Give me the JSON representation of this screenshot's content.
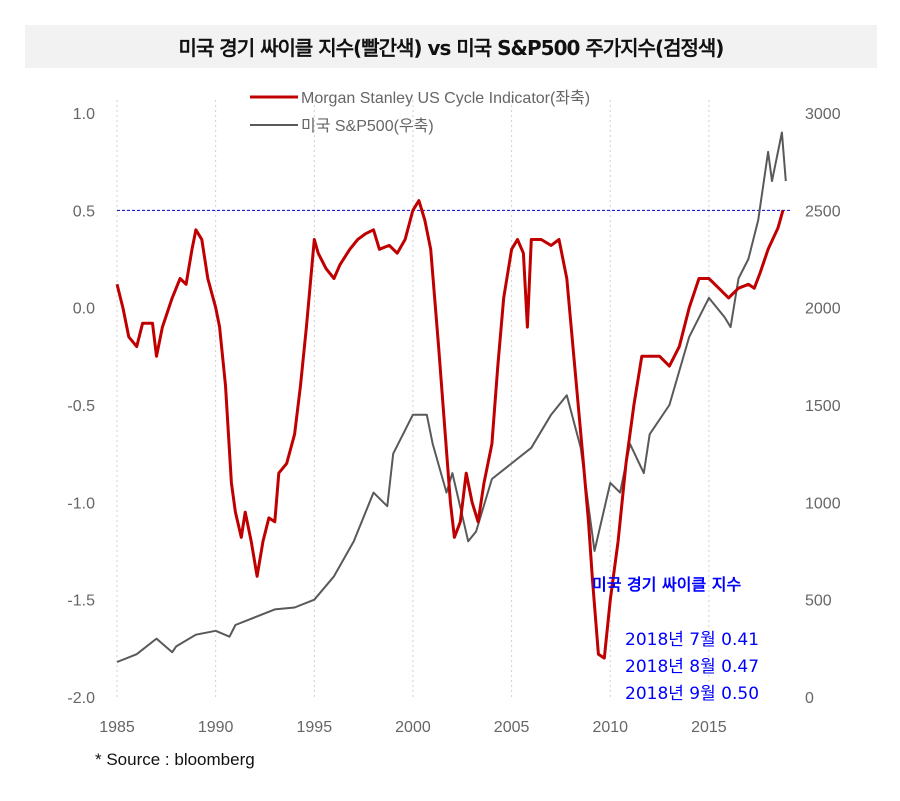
{
  "chart_data": {
    "type": "line",
    "title": "미국 경기 싸이클 지수(빨간색) vs 미국 S&P500 주가지수(검정색)",
    "x_range": [
      1985,
      2019
    ],
    "x_ticks": [
      "1985",
      "1990",
      "1995",
      "2000",
      "2005",
      "2010",
      "2015"
    ],
    "x_tick_values": [
      1985,
      1990,
      1995,
      2000,
      2005,
      2010,
      2015
    ],
    "y_left": {
      "range": [
        -2.0,
        1.0
      ],
      "ticks": [
        "1.0",
        "0.5",
        "0.0",
        "-0.5",
        "-1.0",
        "-1.5",
        "-2.0"
      ],
      "tick_values": [
        1.0,
        0.5,
        0.0,
        -0.5,
        -1.0,
        -1.5,
        -2.0
      ]
    },
    "y_right": {
      "range": [
        0,
        3000
      ],
      "ticks": [
        "3000",
        "2500",
        "2000",
        "1500",
        "1000",
        "500",
        "0"
      ],
      "tick_values": [
        3000,
        2500,
        2000,
        1500,
        1000,
        500,
        0
      ]
    },
    "grid": "vertical dotted",
    "reference_line": {
      "axis": "left",
      "value": 0.5,
      "color": "#0000cc"
    },
    "legend_position": "top-center",
    "series": [
      {
        "name": "Morgan Stanley US Cycle Indicator(좌축)",
        "axis": "left",
        "color": "#c00000",
        "x": [
          1985.0,
          1985.3,
          1985.6,
          1986.0,
          1986.3,
          1986.8,
          1987.0,
          1987.3,
          1987.8,
          1988.2,
          1988.5,
          1988.8,
          1989.0,
          1989.3,
          1989.6,
          1990.0,
          1990.2,
          1990.5,
          1990.8,
          1991.0,
          1991.3,
          1991.5,
          1991.8,
          1992.1,
          1992.4,
          1992.7,
          1993.0,
          1993.2,
          1993.6,
          1994.0,
          1994.3,
          1994.6,
          1995.0,
          1995.2,
          1995.6,
          1996.0,
          1996.3,
          1996.8,
          1997.2,
          1997.6,
          1998.0,
          1998.3,
          1998.8,
          1999.2,
          1999.6,
          2000.0,
          2000.3,
          2000.6,
          2000.9,
          2001.3,
          2001.6,
          2001.9,
          2002.1,
          2002.4,
          2002.7,
          2003.0,
          2003.3,
          2003.6,
          2004.0,
          2004.3,
          2004.6,
          2005.0,
          2005.3,
          2005.6,
          2005.8,
          2006.0,
          2006.5,
          2007.0,
          2007.4,
          2007.8,
          2008.2,
          2008.6,
          2008.9,
          2009.1,
          2009.4,
          2009.7,
          2010.0,
          2010.4,
          2010.8,
          2011.2,
          2011.6,
          2012.0,
          2012.5,
          2013.0,
          2013.5,
          2014.0,
          2014.5,
          2015.0,
          2015.5,
          2016.0,
          2016.5,
          2017.0,
          2017.3,
          2017.6,
          2018.0,
          2018.5,
          2018.67,
          2018.75
        ],
        "y": [
          0.12,
          0.0,
          -0.15,
          -0.2,
          -0.08,
          -0.08,
          -0.25,
          -0.1,
          0.05,
          0.15,
          0.12,
          0.3,
          0.4,
          0.35,
          0.15,
          0.0,
          -0.1,
          -0.4,
          -0.9,
          -1.05,
          -1.18,
          -1.05,
          -1.2,
          -1.38,
          -1.2,
          -1.08,
          -1.1,
          -0.85,
          -0.8,
          -0.65,
          -0.4,
          -0.1,
          0.35,
          0.28,
          0.2,
          0.15,
          0.22,
          0.3,
          0.35,
          0.38,
          0.4,
          0.3,
          0.32,
          0.28,
          0.35,
          0.5,
          0.55,
          0.45,
          0.3,
          -0.2,
          -0.6,
          -1.0,
          -1.18,
          -1.1,
          -0.85,
          -1.0,
          -1.1,
          -0.9,
          -0.7,
          -0.3,
          0.05,
          0.3,
          0.35,
          0.28,
          -0.1,
          0.35,
          0.35,
          0.32,
          0.35,
          0.15,
          -0.3,
          -0.75,
          -1.1,
          -1.4,
          -1.78,
          -1.8,
          -1.5,
          -1.2,
          -0.8,
          -0.5,
          -0.25,
          -0.25,
          -0.25,
          -0.3,
          -0.2,
          0.0,
          0.15,
          0.15,
          0.1,
          0.05,
          0.1,
          0.12,
          0.1,
          0.18,
          0.3,
          0.41,
          0.47,
          0.5
        ]
      },
      {
        "name": "미국 S&P500(우축)",
        "axis": "right",
        "color": "#595959",
        "x": [
          1985,
          1986,
          1987,
          1987.8,
          1988,
          1989,
          1990,
          1990.7,
          1991,
          1992,
          1993,
          1994,
          1995,
          1996,
          1997,
          1998,
          1998.7,
          1999,
          2000,
          2000.7,
          2001,
          2001.7,
          2002,
          2002.8,
          2003.2,
          2004,
          2005,
          2006,
          2007,
          2007.8,
          2008.5,
          2009.2,
          2010,
          2010.5,
          2011,
          2011.7,
          2012,
          2013,
          2014,
          2015,
          2015.8,
          2016.1,
          2016.5,
          2017,
          2017.5,
          2018,
          2018.2,
          2018.7,
          2018.9
        ],
        "y": [
          180,
          220,
          300,
          230,
          260,
          320,
          340,
          310,
          370,
          410,
          450,
          460,
          500,
          620,
          800,
          1050,
          980,
          1250,
          1450,
          1450,
          1300,
          1050,
          1150,
          800,
          850,
          1120,
          1200,
          1280,
          1450,
          1550,
          1280,
          750,
          1100,
          1050,
          1300,
          1150,
          1350,
          1500,
          1850,
          2050,
          1950,
          1900,
          2150,
          2250,
          2450,
          2800,
          2650,
          2900,
          2650
        ]
      }
    ],
    "annotations": {
      "label": "미국 경기 싸이클 지수",
      "lines": [
        "2018년 7월 0.41",
        "2018년 8월 0.47",
        "2018년 9월 0.50"
      ]
    },
    "source": "* Source : bloomberg"
  }
}
